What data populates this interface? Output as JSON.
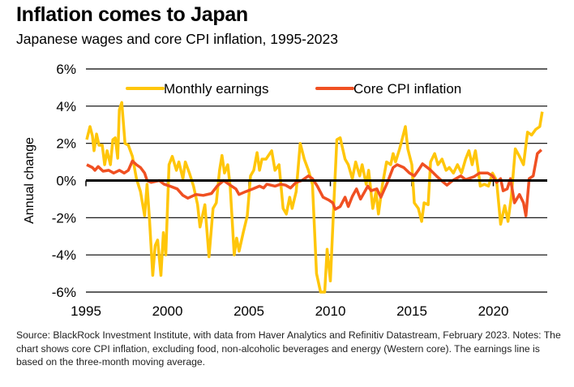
{
  "chart_data": {
    "type": "line",
    "title": "Inflation comes to Japan",
    "subtitle": "Japanese wages and core CPI inflation, 1995-2023",
    "xlabel": "",
    "ylabel": "Annual change",
    "xlim": [
      1995,
      2023.3
    ],
    "ylim": [
      -6,
      6
    ],
    "x_ticks": [
      "1995",
      "2000",
      "2005",
      "2010",
      "2015",
      "2020"
    ],
    "y_ticks": [
      "6%",
      "4%",
      "2%",
      "0%",
      "-2%",
      "-4%",
      "-6%"
    ],
    "grid": "horizontal",
    "legend": "top",
    "series": [
      {
        "name": "Monthly earnings",
        "color": "#FFC60A",
        "points": [
          [
            1995.05,
            2.2
          ],
          [
            1995.25,
            2.9
          ],
          [
            1995.4,
            2.4
          ],
          [
            1995.5,
            1.6
          ],
          [
            1995.65,
            2.5
          ],
          [
            1995.8,
            1.9
          ],
          [
            1996.0,
            1.9
          ],
          [
            1996.15,
            0.85
          ],
          [
            1996.3,
            1.6
          ],
          [
            1996.5,
            0.85
          ],
          [
            1996.65,
            2.2
          ],
          [
            1996.8,
            2.3
          ],
          [
            1996.95,
            1.2
          ],
          [
            1997.05,
            3.8
          ],
          [
            1997.2,
            4.2
          ],
          [
            1997.4,
            2.0
          ],
          [
            1997.6,
            1.9
          ],
          [
            1997.85,
            1.3
          ],
          [
            1998.1,
            0.1
          ],
          [
            1998.35,
            -0.6
          ],
          [
            1998.6,
            -1.9
          ],
          [
            1998.75,
            -0.2
          ],
          [
            1998.9,
            -2.1
          ],
          [
            1999.1,
            -5.1
          ],
          [
            1999.25,
            -3.5
          ],
          [
            1999.4,
            -3.2
          ],
          [
            1999.6,
            -5.1
          ],
          [
            1999.75,
            -2.8
          ],
          [
            1999.9,
            -4.0
          ],
          [
            2000.1,
            0.85
          ],
          [
            2000.3,
            1.3
          ],
          [
            2000.55,
            0.55
          ],
          [
            2000.7,
            1.0
          ],
          [
            2000.95,
            0.1
          ],
          [
            2001.1,
            1.0
          ],
          [
            2001.35,
            0.4
          ],
          [
            2001.6,
            -0.3
          ],
          [
            2001.85,
            -1.3
          ],
          [
            2002.0,
            -2.5
          ],
          [
            2002.3,
            -1.3
          ],
          [
            2002.55,
            -4.1
          ],
          [
            2002.8,
            -1.5
          ],
          [
            2003.0,
            -1.2
          ],
          [
            2003.2,
            0.55
          ],
          [
            2003.35,
            1.35
          ],
          [
            2003.5,
            0.4
          ],
          [
            2003.7,
            0.85
          ],
          [
            2003.85,
            -0.3
          ],
          [
            2004.1,
            -4.0
          ],
          [
            2004.25,
            -3.1
          ],
          [
            2004.4,
            -3.8
          ],
          [
            2004.65,
            -2.8
          ],
          [
            2004.9,
            -1.9
          ],
          [
            2005.1,
            0.25
          ],
          [
            2005.3,
            0.55
          ],
          [
            2005.5,
            1.5
          ],
          [
            2005.65,
            0.55
          ],
          [
            2005.8,
            1.15
          ],
          [
            2006.05,
            1.15
          ],
          [
            2006.4,
            1.6
          ],
          [
            2006.6,
            0.55
          ],
          [
            2006.85,
            0.85
          ],
          [
            2007.1,
            -1.5
          ],
          [
            2007.3,
            -1.8
          ],
          [
            2007.5,
            -0.9
          ],
          [
            2007.65,
            -1.5
          ],
          [
            2007.9,
            -0.6
          ],
          [
            2008.15,
            2.0
          ],
          [
            2008.4,
            1.15
          ],
          [
            2008.65,
            0.55
          ],
          [
            2008.9,
            -0.2
          ],
          [
            2009.15,
            -5.0
          ],
          [
            2009.4,
            -6.0
          ],
          [
            2009.65,
            -6.0
          ],
          [
            2009.8,
            -3.7
          ],
          [
            2010.0,
            -5.4
          ],
          [
            2010.2,
            -1.5
          ],
          [
            2010.4,
            2.2
          ],
          [
            2010.6,
            2.3
          ],
          [
            2010.9,
            1.15
          ],
          [
            2011.1,
            0.85
          ],
          [
            2011.35,
            0.1
          ],
          [
            2011.55,
            1.0
          ],
          [
            2011.8,
            0.25
          ],
          [
            2011.95,
            0.85
          ],
          [
            2012.2,
            -0.2
          ],
          [
            2012.35,
            0.55
          ],
          [
            2012.6,
            -1.5
          ],
          [
            2012.8,
            -0.6
          ],
          [
            2012.95,
            -1.8
          ],
          [
            2013.2,
            -0.2
          ],
          [
            2013.45,
            1.0
          ],
          [
            2013.7,
            0.85
          ],
          [
            2013.85,
            1.45
          ],
          [
            2014.0,
            1.0
          ],
          [
            2014.25,
            1.7
          ],
          [
            2014.4,
            2.2
          ],
          [
            2014.6,
            2.9
          ],
          [
            2014.75,
            1.7
          ],
          [
            2015.0,
            0.85
          ],
          [
            2015.15,
            -1.2
          ],
          [
            2015.4,
            -1.5
          ],
          [
            2015.6,
            -2.2
          ],
          [
            2015.75,
            -1.2
          ],
          [
            2016.0,
            -1.3
          ],
          [
            2016.15,
            1.0
          ],
          [
            2016.4,
            1.45
          ],
          [
            2016.6,
            0.85
          ],
          [
            2016.85,
            1.15
          ],
          [
            2017.1,
            0.55
          ],
          [
            2017.3,
            0.7
          ],
          [
            2017.55,
            0.4
          ],
          [
            2017.8,
            0.85
          ],
          [
            2018.05,
            0.4
          ],
          [
            2018.3,
            1.15
          ],
          [
            2018.5,
            1.6
          ],
          [
            2018.7,
            0.85
          ],
          [
            2018.9,
            1.6
          ],
          [
            2019.05,
            0.7
          ],
          [
            2019.2,
            -0.3
          ],
          [
            2019.45,
            -0.2
          ],
          [
            2019.7,
            -0.3
          ],
          [
            2019.95,
            0.4
          ],
          [
            2020.2,
            0.0
          ],
          [
            2020.45,
            -2.35
          ],
          [
            2020.7,
            -1.35
          ],
          [
            2020.9,
            -2.2
          ],
          [
            2021.1,
            -0.9
          ],
          [
            2021.35,
            1.7
          ],
          [
            2021.6,
            1.3
          ],
          [
            2021.85,
            0.85
          ],
          [
            2022.1,
            2.6
          ],
          [
            2022.35,
            2.45
          ],
          [
            2022.6,
            2.75
          ],
          [
            2022.85,
            2.9
          ],
          [
            2023.0,
            3.7
          ]
        ]
      },
      {
        "name": "Core CPI inflation",
        "color": "#F05022",
        "points": [
          [
            1995.05,
            0.85
          ],
          [
            1995.4,
            0.7
          ],
          [
            1995.55,
            0.55
          ],
          [
            1995.75,
            0.75
          ],
          [
            1996.05,
            0.5
          ],
          [
            1996.4,
            0.55
          ],
          [
            1996.7,
            0.4
          ],
          [
            1997.05,
            0.55
          ],
          [
            1997.35,
            0.4
          ],
          [
            1997.6,
            0.55
          ],
          [
            1997.85,
            1.05
          ],
          [
            1998.1,
            0.85
          ],
          [
            1998.35,
            0.7
          ],
          [
            1998.6,
            0.4
          ],
          [
            1998.75,
            0.0
          ],
          [
            1999.0,
            -0.1
          ],
          [
            1999.5,
            0.0
          ],
          [
            1999.8,
            -0.2
          ],
          [
            2000.15,
            -0.3
          ],
          [
            2000.6,
            -0.45
          ],
          [
            2000.95,
            -0.8
          ],
          [
            2001.25,
            -0.95
          ],
          [
            2001.75,
            -0.75
          ],
          [
            2002.2,
            -0.8
          ],
          [
            2002.7,
            -0.7
          ],
          [
            2003.05,
            -0.3
          ],
          [
            2003.45,
            0.0
          ],
          [
            2003.85,
            -0.25
          ],
          [
            2004.2,
            -0.45
          ],
          [
            2004.4,
            -0.75
          ],
          [
            2004.8,
            -0.6
          ],
          [
            2005.25,
            -0.45
          ],
          [
            2005.65,
            -0.3
          ],
          [
            2005.9,
            -0.4
          ],
          [
            2006.1,
            -0.2
          ],
          [
            2006.6,
            -0.3
          ],
          [
            2006.95,
            -0.2
          ],
          [
            2007.25,
            -0.25
          ],
          [
            2007.55,
            -0.4
          ],
          [
            2007.9,
            -0.1
          ],
          [
            2008.25,
            0.0
          ],
          [
            2008.65,
            0.25
          ],
          [
            2008.9,
            0.1
          ],
          [
            2009.2,
            -0.3
          ],
          [
            2009.55,
            -0.9
          ],
          [
            2009.9,
            -1.05
          ],
          [
            2010.15,
            -1.2
          ],
          [
            2010.3,
            -1.55
          ],
          [
            2010.6,
            -1.4
          ],
          [
            2010.9,
            -0.9
          ],
          [
            2011.1,
            -1.4
          ],
          [
            2011.35,
            -0.85
          ],
          [
            2011.6,
            -0.45
          ],
          [
            2011.85,
            -1.0
          ],
          [
            2012.3,
            -0.3
          ],
          [
            2012.5,
            -0.55
          ],
          [
            2012.85,
            -0.45
          ],
          [
            2013.1,
            -0.9
          ],
          [
            2013.5,
            -0.1
          ],
          [
            2013.85,
            0.7
          ],
          [
            2014.1,
            0.85
          ],
          [
            2014.5,
            0.7
          ],
          [
            2014.85,
            0.4
          ],
          [
            2015.15,
            0.25
          ],
          [
            2015.4,
            0.55
          ],
          [
            2015.65,
            0.9
          ],
          [
            2016.1,
            0.6
          ],
          [
            2016.5,
            0.25
          ],
          [
            2016.75,
            0.05
          ],
          [
            2017.15,
            -0.25
          ],
          [
            2017.5,
            0.0
          ],
          [
            2018.0,
            0.25
          ],
          [
            2018.3,
            0.05
          ],
          [
            2018.8,
            0.2
          ],
          [
            2019.15,
            0.4
          ],
          [
            2019.65,
            0.4
          ],
          [
            2019.95,
            0.25
          ],
          [
            2020.2,
            -0.1
          ],
          [
            2020.45,
            0.1
          ],
          [
            2020.6,
            -0.55
          ],
          [
            2020.85,
            -0.45
          ],
          [
            2021.05,
            0.1
          ],
          [
            2021.3,
            -1.2
          ],
          [
            2021.6,
            -0.75
          ],
          [
            2021.85,
            -1.2
          ],
          [
            2022.0,
            -1.9
          ],
          [
            2022.2,
            0.1
          ],
          [
            2022.45,
            0.25
          ],
          [
            2022.7,
            1.45
          ],
          [
            2022.95,
            1.65
          ]
        ]
      }
    ]
  },
  "footer": {
    "text": "Source: BlackRock Investment Institute, with data from Haver Analytics and  Refinitiv Datastream, February 2023. Notes: The chart shows core CPI inflation, excluding food, non-alcoholic beverages and energy (Western core).  The earnings line is based on the three-month moving average."
  }
}
